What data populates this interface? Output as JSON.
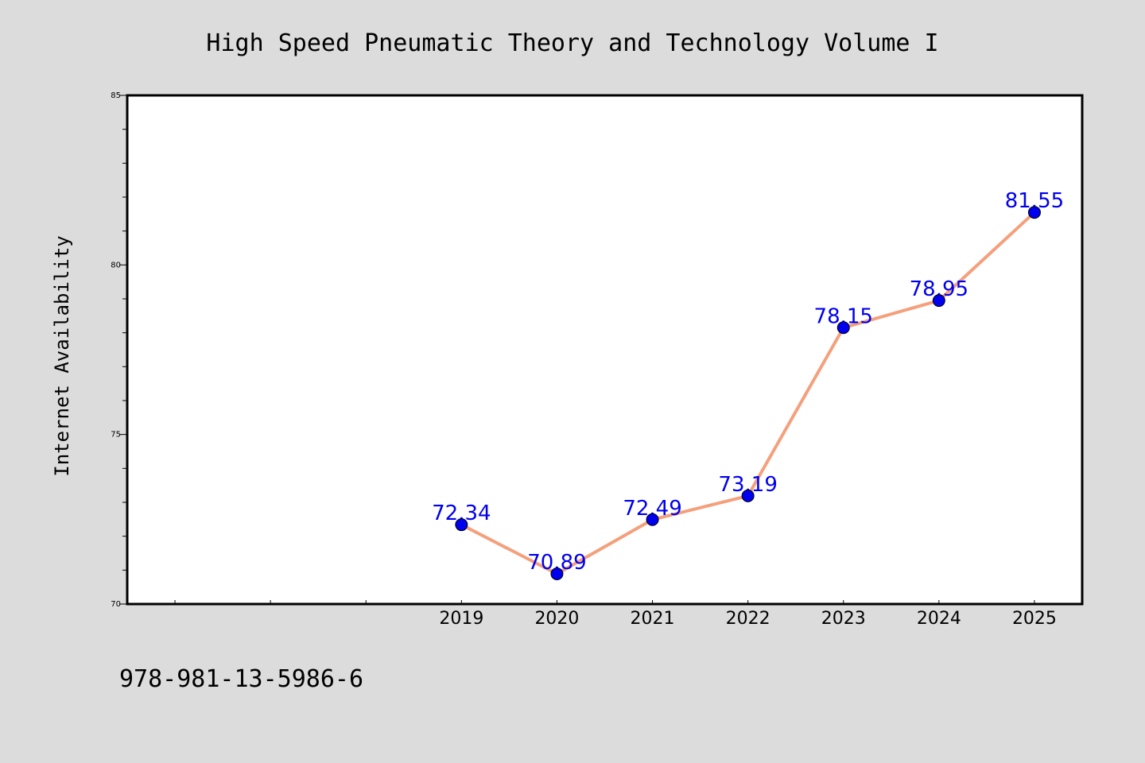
{
  "chart_data": {
    "type": "line",
    "title": "High Speed Pneumatic Theory and Technology Volume I",
    "xlabel": "",
    "ylabel": "Internet Availability",
    "annotation": "978-981-13-5986-6",
    "x": [
      "2019",
      "2020",
      "2021",
      "2022",
      "2023",
      "2024",
      "2025"
    ],
    "series": [
      {
        "values": [
          72.34,
          70.89,
          72.49,
          73.19,
          78.15,
          78.95,
          81.55
        ]
      }
    ],
    "data_labels": [
      "72.34",
      "70.89",
      "72.49",
      "73.19",
      "78.15",
      "78.95",
      "81.55"
    ],
    "ylim": [
      70,
      85
    ],
    "yticks": [
      "70",
      "75",
      "80",
      "85"
    ],
    "x_categories_total": 10,
    "x_first_label_index": 3,
    "grid": false,
    "colors": {
      "line": "#f4a07c",
      "marker": "#0000ee",
      "label": "#0000ee",
      "background": "#dcdcdc",
      "plot_area": "#ffffff",
      "axis": "#000000"
    }
  }
}
